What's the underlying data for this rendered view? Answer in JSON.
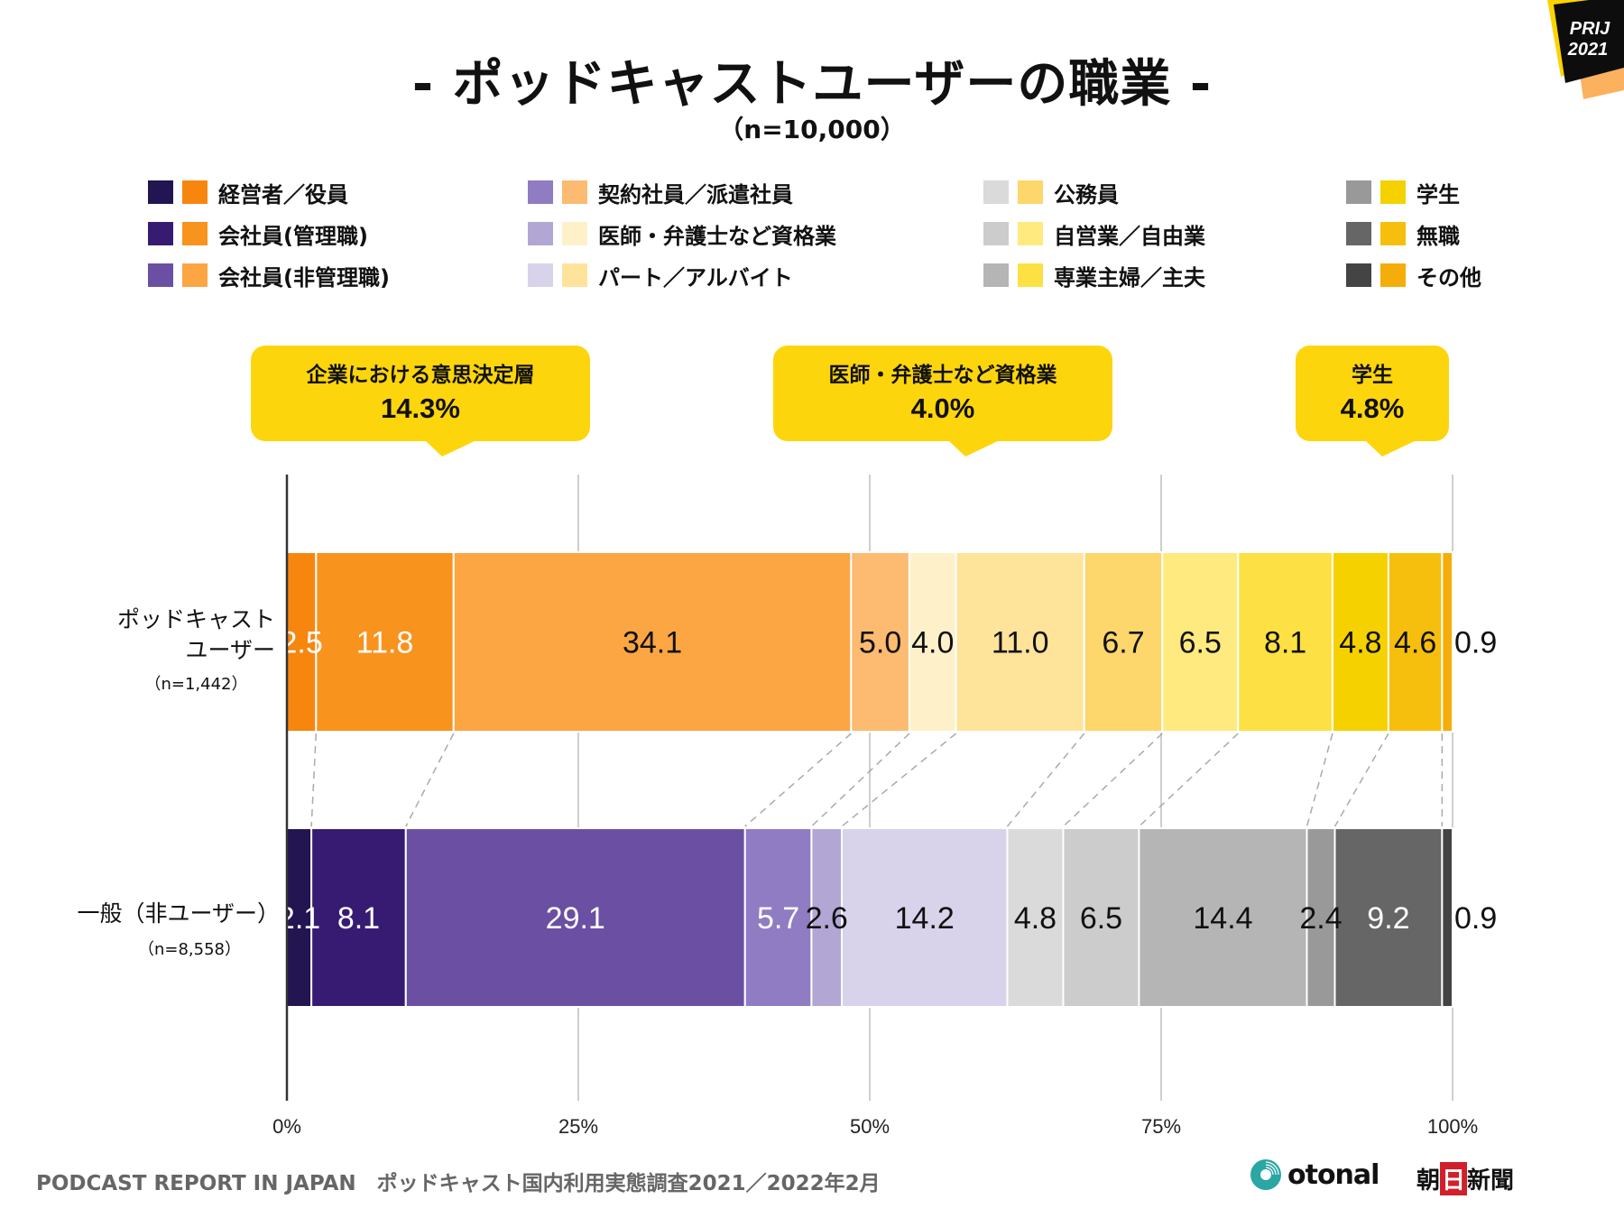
{
  "header": {
    "title": "- ポッドキャストユーザーの職業 -",
    "subtitle": "（n=10,000）",
    "badge_line1": "PRIJ",
    "badge_line2": "2021"
  },
  "legend": [
    {
      "label": "経営者／役員",
      "color_general": "#221552",
      "color_user": "#f7860f"
    },
    {
      "label": "会社員(管理職)",
      "color_general": "#371b72",
      "color_user": "#f8931e"
    },
    {
      "label": "会社員(非管理職)",
      "color_general": "#6a4fa3",
      "color_user": "#fba643"
    },
    {
      "label": "契約社員／派遣社員",
      "color_general": "#8f7cc2",
      "color_user": "#fcbb70"
    },
    {
      "label": "医師・弁護士など資格業",
      "color_general": "#b2a6d4",
      "color_user": "#fef1ca"
    },
    {
      "label": "パート／アルバイト",
      "color_general": "#d8d3ea",
      "color_user": "#fee39a"
    },
    {
      "label": "公務員",
      "color_general": "#dadada",
      "color_user": "#fdd66c"
    },
    {
      "label": "自営業／自由業",
      "color_general": "#cccccc",
      "color_user": "#feea7e"
    },
    {
      "label": "専業主婦／主夫",
      "color_general": "#b5b5b5",
      "color_user": "#fde043"
    },
    {
      "label": "学生",
      "color_general": "#999999",
      "color_user": "#f5d100"
    },
    {
      "label": "無職",
      "color_general": "#666666",
      "color_user": "#f6bf0d"
    },
    {
      "label": "その他",
      "color_general": "#444444",
      "color_user": "#f5ad0a"
    }
  ],
  "callouts": [
    {
      "title": "企業における意思決定層",
      "value": "14.3%"
    },
    {
      "title": "医師・弁護士など資格業",
      "value": "4.0%"
    },
    {
      "title": "学生",
      "value": "4.8%"
    }
  ],
  "rows": [
    {
      "label_line1": "ポッドキャスト",
      "label_line2": "ユーザー",
      "n": "（n=1,442）"
    },
    {
      "label_line1": "一般（非ユーザー）",
      "label_line2": "",
      "n": "（n=8,558）"
    }
  ],
  "chart_data": {
    "type": "bar",
    "orientation": "horizontal-stacked-100",
    "title": "- ポッドキャストユーザーの職業 -",
    "subtitle": "（n=10,000）",
    "xlabel": "",
    "ylabel": "",
    "xlim": [
      0,
      100
    ],
    "x_ticks": [
      "0%",
      "25%",
      "50%",
      "75%",
      "100%"
    ],
    "grid": true,
    "legend_position": "top",
    "categories": [
      "ポッドキャストユーザー（n=1,442）",
      "一般（非ユーザー）（n=8,558）"
    ],
    "segments": [
      "経営者／役員",
      "会社員(管理職)",
      "会社員(非管理職)",
      "契約社員／派遣社員",
      "医師・弁護士など資格業",
      "パート／アルバイト",
      "公務員",
      "自営業／自由業",
      "専業主婦／主夫",
      "学生",
      "無職",
      "その他"
    ],
    "series": [
      {
        "name": "ポッドキャストユーザー",
        "values": [
          2.5,
          11.8,
          34.1,
          5.0,
          4.0,
          11.0,
          6.7,
          6.5,
          8.1,
          4.8,
          4.6,
          0.9
        ]
      },
      {
        "name": "一般（非ユーザー）",
        "values": [
          2.1,
          8.1,
          29.1,
          5.7,
          2.6,
          14.2,
          4.8,
          6.5,
          14.4,
          2.4,
          9.2,
          0.9
        ]
      }
    ],
    "label_colors": {
      "user": [
        "#ffffff",
        "#ffffff",
        "#111111",
        "#111111",
        "#111111",
        "#111111",
        "#111111",
        "#111111",
        "#111111",
        "#111111",
        "#111111",
        "#111111"
      ],
      "general": [
        "#ffffff",
        "#ffffff",
        "#ffffff",
        "#ffffff",
        "#111111",
        "#111111",
        "#111111",
        "#111111",
        "#111111",
        "#111111",
        "#ffffff",
        "#111111"
      ]
    }
  },
  "footer": {
    "text": "PODCAST REPORT IN JAPAN　ポッドキャスト国内利用実態調査2021／2022年2月",
    "logo_otonal": "otonal",
    "logo_asahi": [
      "朝",
      "日",
      "新",
      "聞"
    ]
  }
}
